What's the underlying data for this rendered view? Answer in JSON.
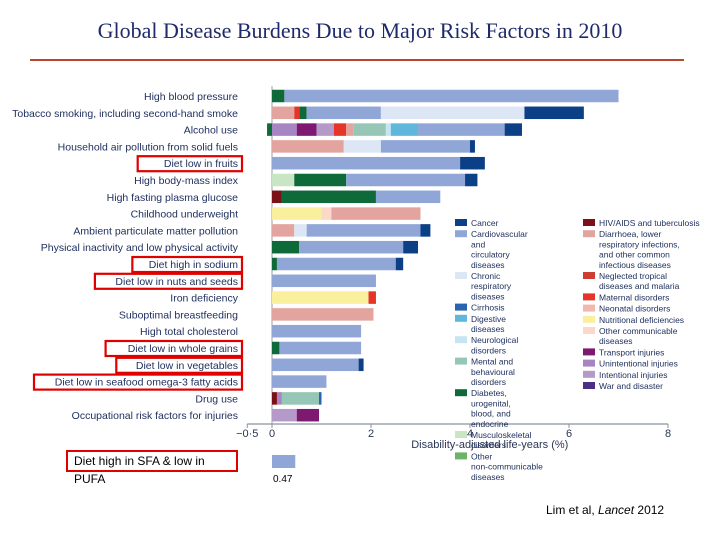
{
  "title": "Global Disease Burdens Due to Major Risk Factors in 2010",
  "sfa_note": {
    "label": "Diet high in SFA & low in PUFA",
    "value_text": "0.47"
  },
  "citation": {
    "prefix": "Lim et al, ",
    "journal": "Lancet",
    "year": " 2012"
  },
  "colors": {
    "Cancer": "#0b3f86",
    "Cardiovascular and circulatory diseases": "#8fa6d6",
    "Chronic respiratory diseases": "#dde6f5",
    "Cirrhosis": "#2a63b0",
    "Digestive diseases": "#5fb8dc",
    "Neurological disorders": "#c6e5f2",
    "Mental and behavioural disorders": "#96c7b6",
    "Diabetes, urogenital, blood, and endocrine": "#0f6a3a",
    "Musculoskeletal disorders": "#c8e6c4",
    "Other non-communicable diseases": "#6db36a",
    "HIV/AIDS and tuberculosis": "#7a1018",
    "Diarrhoea, lower respiratory infections, and other common infectious diseases": "#e3a49f",
    "Neglected tropical diseases and malaria": "#cc3d33",
    "Maternal disorders": "#e53428",
    "Neonatal disorders": "#f2b8ae",
    "Nutritional deficiencies": "#f9ef9c",
    "Other communicable diseases": "#fbd8c8",
    "Transport injuries": "#7e1870",
    "Unintentional injuries": "#a784c2",
    "Intentional injuries": "#b499c9",
    "War and disaster": "#4b2e85"
  },
  "chart_data": {
    "type": "bar",
    "orientation": "horizontal",
    "stacked": true,
    "xlabel": "Disability-adjusted life-years (%)",
    "xlim": [
      -0.5,
      8
    ],
    "xticks": [
      {
        "value": -0.5,
        "label": "−0·5"
      },
      {
        "value": 0,
        "label": "0"
      },
      {
        "value": 2,
        "label": "2"
      },
      {
        "value": 4,
        "label": "4"
      },
      {
        "value": 6,
        "label": "6"
      },
      {
        "value": 8,
        "label": "8"
      }
    ],
    "highlighted": [
      "Diet low in fruits",
      "Diet high in sodium",
      "Diet low in nuts and seeds",
      "Diet low in whole grains",
      "Diet low in vegetables",
      "Diet low in seafood omega-3 fatty acids"
    ],
    "categories": [
      {
        "label": "High blood pressure",
        "segments": [
          {
            "cause": "Diabetes, urogenital, blood, and endocrine",
            "value": 0.25
          },
          {
            "cause": "Cardiovascular and circulatory diseases",
            "value": 6.75
          }
        ]
      },
      {
        "label": "Tobacco smoking, including second-hand smoke",
        "segments": [
          {
            "cause": "Diarrhoea, lower respiratory infections, and other common infectious diseases",
            "value": 0.45
          },
          {
            "cause": "Maternal disorders",
            "value": 0.1
          },
          {
            "cause": "Diabetes, urogenital, blood, and endocrine",
            "value": 0.15
          },
          {
            "cause": "Cardiovascular and circulatory diseases",
            "value": 1.5
          },
          {
            "cause": "Chronic respiratory diseases",
            "value": 2.9
          },
          {
            "cause": "Cancer",
            "value": 1.2
          }
        ]
      },
      {
        "label": "Alcohol use",
        "segments": [
          {
            "cause": "Diabetes, urogenital, blood, and endocrine",
            "value": -0.1
          },
          {
            "cause": "Unintentional injuries",
            "value": 0.5
          },
          {
            "cause": "Transport injuries",
            "value": 0.4
          },
          {
            "cause": "Intentional injuries",
            "value": 0.35
          },
          {
            "cause": "Maternal disorders",
            "value": 0.25
          },
          {
            "cause": "Diarrhoea, lower respiratory infections, and other common infectious diseases",
            "value": 0.15
          },
          {
            "cause": "Mental and behavioural disorders",
            "value": 0.65
          },
          {
            "cause": "Neurological disorders",
            "value": 0.1
          },
          {
            "cause": "Digestive diseases",
            "value": 0.55
          },
          {
            "cause": "Cardiovascular and circulatory diseases",
            "value": 1.75
          },
          {
            "cause": "Cancer",
            "value": 0.35
          }
        ]
      },
      {
        "label": "Household air pollution from solid fuels",
        "segments": [
          {
            "cause": "Diarrhoea, lower respiratory infections, and other common infectious diseases",
            "value": 1.45
          },
          {
            "cause": "Chronic respiratory diseases",
            "value": 0.75
          },
          {
            "cause": "Cardiovascular and circulatory diseases",
            "value": 1.8
          },
          {
            "cause": "Cancer",
            "value": 0.1
          }
        ]
      },
      {
        "label": "Diet low in fruits",
        "segments": [
          {
            "cause": "Cardiovascular and circulatory diseases",
            "value": 3.8
          },
          {
            "cause": "Cancer",
            "value": 0.5
          }
        ]
      },
      {
        "label": "High body-mass index",
        "segments": [
          {
            "cause": "Musculoskeletal disorders",
            "value": 0.45
          },
          {
            "cause": "Diabetes, urogenital, blood, and endocrine",
            "value": 1.05
          },
          {
            "cause": "Cardiovascular and circulatory diseases",
            "value": 2.4
          },
          {
            "cause": "Cancer",
            "value": 0.25
          }
        ]
      },
      {
        "label": "High fasting plasma glucose",
        "segments": [
          {
            "cause": "HIV/AIDS and tuberculosis",
            "value": 0.2
          },
          {
            "cause": "Diabetes, urogenital, blood, and endocrine",
            "value": 1.9
          },
          {
            "cause": "Cardiovascular and circulatory diseases",
            "value": 1.3
          }
        ]
      },
      {
        "label": "Childhood underweight",
        "segments": [
          {
            "cause": "Nutritional deficiencies",
            "value": 1.0
          },
          {
            "cause": "Other communicable diseases",
            "value": 0.2
          },
          {
            "cause": "Diarrhoea, lower respiratory infections, and other common infectious diseases",
            "value": 1.8
          }
        ]
      },
      {
        "label": "Ambient particulate matter pollution",
        "segments": [
          {
            "cause": "Diarrhoea, lower respiratory infections, and other common infectious diseases",
            "value": 0.45
          },
          {
            "cause": "Chronic respiratory diseases",
            "value": 0.25
          },
          {
            "cause": "Cardiovascular and circulatory diseases",
            "value": 2.3
          },
          {
            "cause": "Cancer",
            "value": 0.2
          }
        ]
      },
      {
        "label": "Physical inactivity and low physical activity",
        "segments": [
          {
            "cause": "Diabetes, urogenital, blood, and endocrine",
            "value": 0.55
          },
          {
            "cause": "Cardiovascular and circulatory diseases",
            "value": 2.1
          },
          {
            "cause": "Cancer",
            "value": 0.3
          }
        ]
      },
      {
        "label": "Diet high in sodium",
        "segments": [
          {
            "cause": "Diabetes, urogenital, blood, and endocrine",
            "value": 0.1
          },
          {
            "cause": "Cardiovascular and circulatory diseases",
            "value": 2.4
          },
          {
            "cause": "Cancer",
            "value": 0.15
          }
        ]
      },
      {
        "label": "Diet low in nuts and seeds",
        "segments": [
          {
            "cause": "Cardiovascular and circulatory diseases",
            "value": 2.1
          }
        ]
      },
      {
        "label": "Iron deficiency",
        "segments": [
          {
            "cause": "Nutritional deficiencies",
            "value": 1.95
          },
          {
            "cause": "Maternal disorders",
            "value": 0.15
          }
        ]
      },
      {
        "label": "Suboptimal breastfeeding",
        "segments": [
          {
            "cause": "Diarrhoea, lower respiratory infections, and other common infectious diseases",
            "value": 2.05
          }
        ]
      },
      {
        "label": "High total cholesterol",
        "segments": [
          {
            "cause": "Cardiovascular and circulatory diseases",
            "value": 1.8
          }
        ]
      },
      {
        "label": "Diet low in whole grains",
        "segments": [
          {
            "cause": "Diabetes, urogenital, blood, and endocrine",
            "value": 0.15
          },
          {
            "cause": "Cardiovascular and circulatory diseases",
            "value": 1.65
          }
        ]
      },
      {
        "label": "Diet low in vegetables",
        "segments": [
          {
            "cause": "Cardiovascular and circulatory diseases",
            "value": 1.75
          },
          {
            "cause": "Cancer",
            "value": 0.1
          }
        ]
      },
      {
        "label": "Diet low in seafood omega-3 fatty acids",
        "segments": [
          {
            "cause": "Cardiovascular and circulatory diseases",
            "value": 1.1
          }
        ]
      },
      {
        "label": "Drug use",
        "segments": [
          {
            "cause": "HIV/AIDS and tuberculosis",
            "value": 0.1
          },
          {
            "cause": "Unintentional injuries",
            "value": 0.1
          },
          {
            "cause": "Mental and behavioural disorders",
            "value": 0.75
          },
          {
            "cause": "Cirrhosis",
            "value": 0.05
          }
        ]
      },
      {
        "label": "Occupational risk factors for injuries",
        "segments": [
          {
            "cause": "Intentional injuries",
            "value": 0.5
          },
          {
            "cause": "Transport injuries",
            "value": 0.45
          }
        ]
      }
    ],
    "legend": {
      "placement": "right",
      "columns": [
        [
          "Cancer",
          "Cardiovascular and circulatory diseases",
          "Chronic respiratory diseases",
          "Cirrhosis",
          "Digestive diseases",
          "Neurological disorders",
          "Mental and behavioural disorders",
          "Diabetes, urogenital, blood, and endocrine",
          "Musculoskeletal disorders",
          "Other non-communicable diseases"
        ],
        [
          "HIV/AIDS and tuberculosis",
          "Diarrhoea, lower respiratory infections, and other common infectious diseases",
          "Neglected tropical diseases and malaria",
          "Maternal disorders",
          "Neonatal disorders",
          "Nutritional deficiencies",
          "Other communicable diseases",
          "Transport injuries",
          "Unintentional injuries",
          "Intentional injuries",
          "War and disaster"
        ]
      ]
    },
    "sfa_bar": {
      "value": 0.47,
      "cause": "Cardiovascular and circulatory diseases"
    }
  }
}
